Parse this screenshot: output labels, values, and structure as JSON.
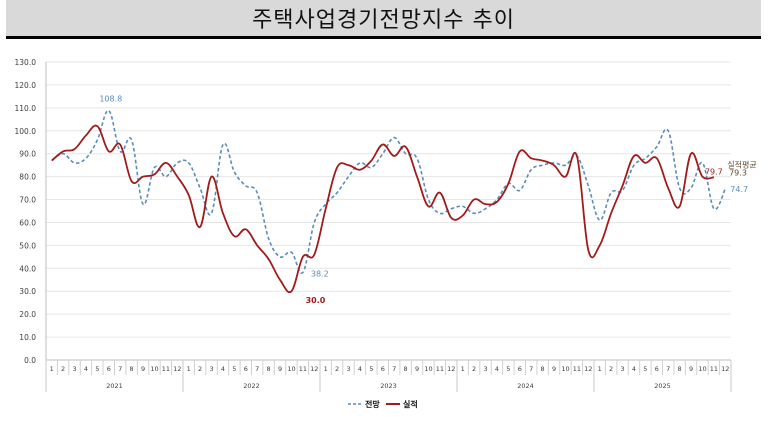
{
  "header": {
    "title": "주택사업경기전망지수 추이"
  },
  "colors": {
    "forecast": "#5b8cb8",
    "actual": "#a01c1c",
    "average": "#5a4a2a",
    "grid": "#e6e6e6",
    "axis": "#bfbfbf",
    "title_bg": "#d9d9d9"
  },
  "legend": {
    "forecast_label": "전망",
    "actual_label": "실적"
  },
  "annotations": {
    "forecast_max": "108.8",
    "forecast_min": "38.2",
    "actual_min": "30.0",
    "actual_last": "79.7",
    "forecast_last": "74.7",
    "actual_avg_label": "실적평균",
    "actual_avg_value": "79.3"
  },
  "chart_data": {
    "type": "line",
    "title": "주택사업경기전망지수 추이",
    "xlabel": "",
    "ylabel": "",
    "ylim": [
      0,
      130
    ],
    "yticks": [
      "0.0",
      "10.0",
      "20.0",
      "30.0",
      "40.0",
      "50.0",
      "60.0",
      "70.0",
      "80.0",
      "90.0",
      "100.0",
      "110.0",
      "120.0",
      "130.0"
    ],
    "grid": true,
    "legend_position": "bottom",
    "years": [
      "2021",
      "2022",
      "2023",
      "2024",
      "2025"
    ],
    "months": [
      "1",
      "2",
      "3",
      "4",
      "5",
      "6",
      "7",
      "8",
      "9",
      "10",
      "11",
      "12"
    ],
    "series": [
      {
        "name": "전망",
        "style": "dashed",
        "values": [
          87,
          90,
          86,
          88,
          96,
          108.8,
          91,
          96,
          68,
          84,
          80,
          86,
          86,
          75,
          64,
          94,
          82,
          76,
          73,
          53,
          45,
          47,
          38.2,
          60,
          68,
          73,
          80,
          86,
          84,
          90,
          97,
          90,
          88,
          70,
          64,
          66,
          67,
          64,
          66,
          70,
          77,
          74,
          83,
          85,
          86,
          85,
          89,
          76,
          61,
          73,
          74,
          85,
          88,
          93,
          100,
          75,
          75,
          86,
          66,
          74.7
        ]
      },
      {
        "name": "실적",
        "style": "solid",
        "values": [
          87,
          91,
          92,
          98,
          102,
          91,
          94,
          78,
          80,
          81,
          86,
          80,
          72,
          58,
          80,
          64,
          54,
          57,
          50,
          44,
          35,
          30.0,
          45,
          46,
          66,
          84,
          85,
          83,
          87,
          94,
          89,
          93,
          80,
          67,
          73,
          62,
          63,
          70,
          68,
          69,
          77,
          91,
          88,
          87,
          85,
          80,
          89,
          48,
          50,
          64,
          76,
          89,
          86,
          88,
          75,
          67,
          90,
          80,
          79.7,
          null
        ]
      }
    ],
    "reference": {
      "name": "실적평균",
      "value": 79.3
    }
  }
}
